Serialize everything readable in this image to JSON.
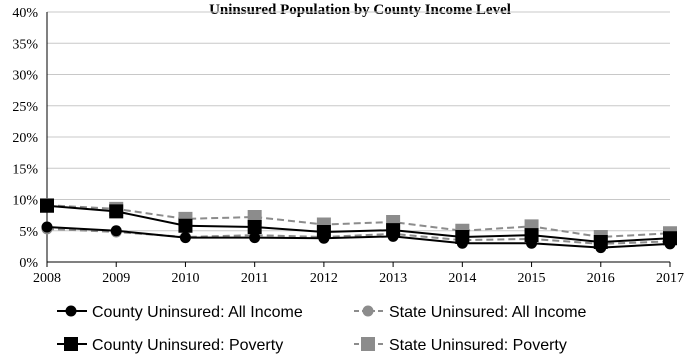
{
  "chart_data": {
    "type": "line",
    "title": "Uninsured Population by County Income Level",
    "x": [
      "2008",
      "2009",
      "2010",
      "2011",
      "2012",
      "2013",
      "2014",
      "2015",
      "2016",
      "2017"
    ],
    "y_ticks": [
      "0%",
      "5%",
      "10%",
      "15%",
      "20%",
      "25%",
      "30%",
      "35%",
      "40%"
    ],
    "ylim": [
      0,
      40
    ],
    "y_unit": "%",
    "grid": true,
    "legend_placement": "bottom",
    "series": [
      {
        "name": "County Uninsured: All Income",
        "values": [
          5.6,
          5.0,
          3.9,
          3.9,
          3.8,
          4.1,
          3.0,
          3.0,
          2.3,
          2.9
        ],
        "color": "#000000",
        "line_style": "solid",
        "marker": "circle"
      },
      {
        "name": "State Uninsured: All Income",
        "values": [
          5.3,
          4.8,
          4.0,
          4.3,
          4.0,
          4.5,
          3.5,
          3.7,
          2.9,
          3.3
        ],
        "color": "#8c8c8c",
        "line_style": "dashed",
        "marker": "circle"
      },
      {
        "name": "County Uninsured: Poverty",
        "values": [
          9.0,
          8.1,
          5.8,
          5.6,
          4.8,
          5.1,
          4.0,
          4.3,
          3.2,
          3.8
        ],
        "color": "#000000",
        "line_style": "solid",
        "marker": "square"
      },
      {
        "name": "State Uninsured: Poverty",
        "values": [
          9.1,
          8.5,
          6.9,
          7.2,
          6.0,
          6.4,
          5.0,
          5.7,
          4.0,
          4.6
        ],
        "color": "#8c8c8c",
        "line_style": "dashed",
        "marker": "square"
      }
    ]
  }
}
